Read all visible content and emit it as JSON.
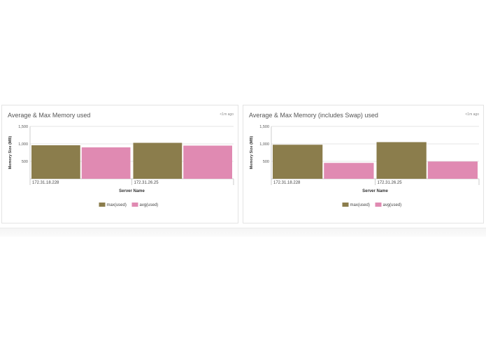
{
  "panels": [
    {
      "title": "Average & Max Memory used",
      "timestamp": "<1m ago",
      "chart_data": {
        "type": "bar",
        "categories": [
          "172.31.18.228",
          "172.31.26.25"
        ],
        "series": [
          {
            "name": "max(used)",
            "color": "#8b7d4c",
            "values": [
              960,
              1030
            ]
          },
          {
            "name": "avg(used)",
            "color": "#e08ab2",
            "values": [
              900,
              950
            ]
          }
        ],
        "xlabel": "Server Name",
        "ylabel": "Memory Size (MB)",
        "ylim": [
          0,
          1500
        ],
        "yticks": [
          500,
          1000,
          1500
        ],
        "ytick_labels": [
          "500",
          "1,000",
          "1,500"
        ],
        "grid": true,
        "legend": "bottom-center"
      }
    },
    {
      "title": "Average & Max Memory (includes Swap) used",
      "timestamp": "<1m ago",
      "chart_data": {
        "type": "bar",
        "categories": [
          "172.31.18.228",
          "172.31.26.25"
        ],
        "series": [
          {
            "name": "max(used)",
            "color": "#8b7d4c",
            "values": [
              975,
              1050
            ]
          },
          {
            "name": "avg(used)",
            "color": "#e08ab2",
            "values": [
              455,
              495
            ]
          }
        ],
        "xlabel": "Server Name",
        "ylabel": "Memory Size (MB)",
        "ylim": [
          0,
          1500
        ],
        "yticks": [
          500,
          1000,
          1500
        ],
        "ytick_labels": [
          "500",
          "1,000",
          "1,500"
        ],
        "grid": true,
        "legend": "bottom-center"
      }
    }
  ]
}
